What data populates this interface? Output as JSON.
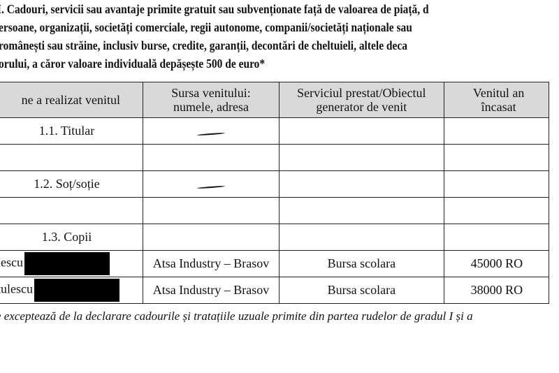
{
  "heading": {
    "lines": [
      "I. Cadouri, servicii sau avantaje primite gratuit sau subvenționate față de valoarea de piață, d",
      "ersoane, organizații, societăți comerciale, regii autonome, companii/societăți naționale sau",
      " românești sau străine, inclusiv burse, credite, garanții, decontări de cheltuieli, altele deca",
      "orului, a căror valoare individuală depășește 500 de euro*"
    ]
  },
  "table": {
    "headers": [
      "ne a realizat venitul",
      "Sursa venitului: numele, adresa",
      "Serviciul prestat/Obiectul generator de venit",
      "Venitul an încasat"
    ],
    "rows": [
      {
        "who": "1.1. Titular",
        "source": "—",
        "service": "",
        "amount": ""
      },
      {
        "who": "",
        "source": "",
        "service": "",
        "amount": ""
      },
      {
        "who": "1.2. Soț/soție",
        "source": "—",
        "service": "",
        "amount": ""
      },
      {
        "who": "",
        "source": "",
        "service": "",
        "amount": ""
      },
      {
        "who": "1.3. Copii",
        "source": "",
        "service": "",
        "amount": ""
      },
      {
        "who": "ulescu",
        "source": "Atsa Industry – Brasov",
        "service": "Bursa scolara",
        "amount": "45000 RO"
      },
      {
        "who": "utulescu",
        "source": "Atsa Industry – Brasov",
        "service": "Bursa scolara",
        "amount": "38000 RO"
      }
    ]
  },
  "footnote": "e exceptează de la declarare cadourile și tratațiile uzuale primite din partea rudelor de gradul I și a"
}
